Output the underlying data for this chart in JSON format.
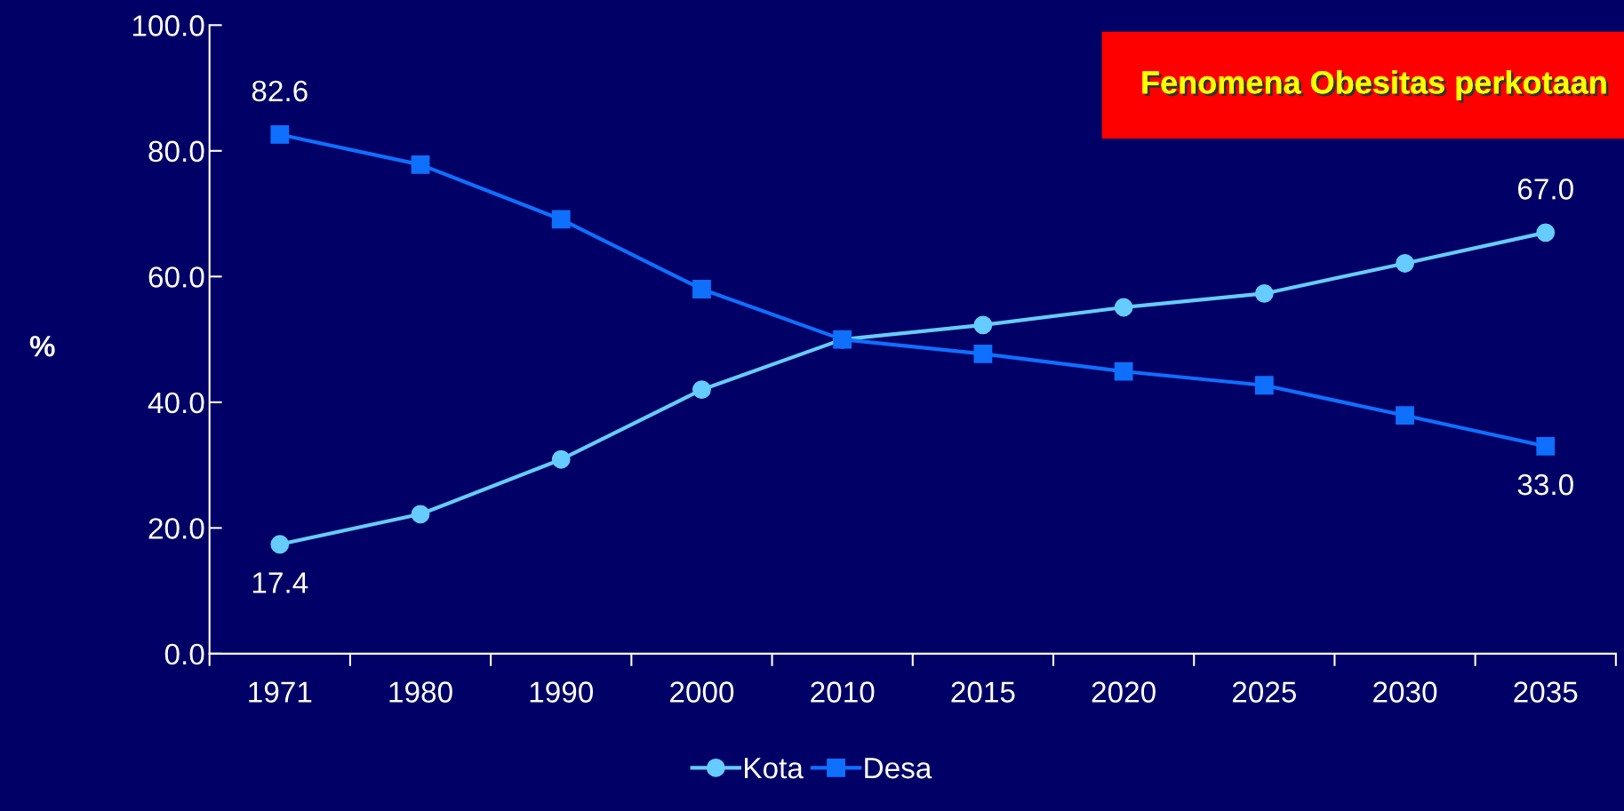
{
  "chart_data": {
    "type": "line",
    "title": "Fenomena Obesitas perkotaan",
    "ylabel": "%",
    "categories": [
      "1971",
      "1980",
      "1990",
      "2000",
      "2010",
      "2015",
      "2020",
      "2025",
      "2030",
      "2035"
    ],
    "series": [
      {
        "name": "Kota",
        "color": "#66ccff",
        "marker": "circle",
        "values": [
          17.4,
          22.2,
          30.9,
          42.0,
          50.0,
          52.3,
          55.1,
          57.3,
          62.1,
          67.0
        ],
        "value_labels": [
          "17.4",
          null,
          null,
          null,
          null,
          null,
          null,
          null,
          null,
          "67.0"
        ]
      },
      {
        "name": "Desa",
        "color": "#0f6fff",
        "marker": "square",
        "values": [
          82.6,
          77.8,
          69.1,
          58.0,
          50.0,
          47.7,
          44.9,
          42.7,
          37.9,
          33.0
        ],
        "value_labels": [
          "82.6",
          null,
          null,
          null,
          null,
          null,
          null,
          null,
          null,
          "33.0"
        ]
      }
    ],
    "ylim": [
      0,
      100
    ],
    "yticks": [
      {
        "value": 0,
        "label": "0.0"
      },
      {
        "value": 20,
        "label": "20.0"
      },
      {
        "value": 40,
        "label": "40.0"
      },
      {
        "value": 60,
        "label": "60.0"
      },
      {
        "value": 80,
        "label": "80.0"
      },
      {
        "value": 100,
        "label": "100.0"
      }
    ],
    "legend": "bottom",
    "grid": false
  }
}
